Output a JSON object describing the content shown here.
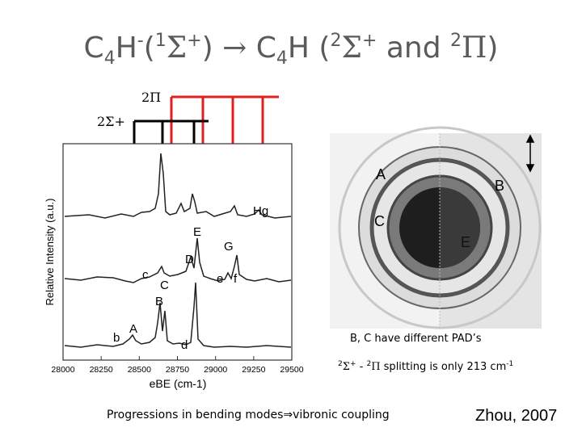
{
  "title": {
    "pre": "C",
    "sub1": "4",
    "mid1": "H",
    "sup1": "-",
    "mid2": "(",
    "sup2": "1",
    "sigma1": "Σ",
    "sup3": "+",
    "mid3": ") ",
    "arrow": "→",
    "mid4": " C",
    "sub2": "4",
    "mid5": "H (",
    "sup4": "2",
    "sigma2": "Σ",
    "sup5": "+",
    "mid6": " and ",
    "sup6": "2",
    "pi": "Π",
    "mid7": ")"
  },
  "state_labels": {
    "pi_label": "2Π",
    "sigma_label": "2Σ+"
  },
  "chart_data": {
    "type": "line",
    "xlabel": "eBE (cm-1)",
    "ylabel": "Relative Intensity (a.u.)",
    "xlim": [
      28000,
      29500
    ],
    "xticks": [
      28000,
      28250,
      28500,
      28750,
      29000,
      29250,
      29500
    ],
    "peak_labels": [
      {
        "text": "Hg",
        "x": 29380,
        "trace": "top"
      },
      {
        "text": "E",
        "x": 28960,
        "trace": "middle"
      },
      {
        "text": "G",
        "x": 29260,
        "trace": "middle"
      },
      {
        "text": "D",
        "x": 28890,
        "trace": "middle"
      },
      {
        "text": "c",
        "x": 28560,
        "trace": "middle"
      },
      {
        "text": "e",
        "x": 29180,
        "trace": "middle"
      },
      {
        "text": "f",
        "x": 29380,
        "trace": "middle"
      },
      {
        "text": "C",
        "x": 28810,
        "trace": "middle"
      },
      {
        "text": "B",
        "x": 28790,
        "trace": "bottom"
      },
      {
        "text": "A",
        "x": 28600,
        "trace": "bottom"
      },
      {
        "text": "b",
        "x": 28490,
        "trace": "bottom"
      },
      {
        "text": "d",
        "x": 28950,
        "trace": "bottom"
      }
    ]
  },
  "image_labels": {
    "A": "A",
    "B": "B",
    "C": "C",
    "E": "E"
  },
  "captions": {
    "pad": "B, C have different PAD’s",
    "split_a": "2",
    "split_b": "Σ",
    "split_c": "+",
    "split_d": " - ",
    "split_e": "2",
    "split_f": "Π",
    "split_g": " splitting is only 213 cm",
    "split_h": "-1",
    "progressions": "Progressions in bending modes⇒vibronic coupling",
    "credit": "Zhou, 2007"
  },
  "colors": {
    "title": "#5a5a5a",
    "pi_lines": "#e02020",
    "sigma_lines": "#000000"
  }
}
